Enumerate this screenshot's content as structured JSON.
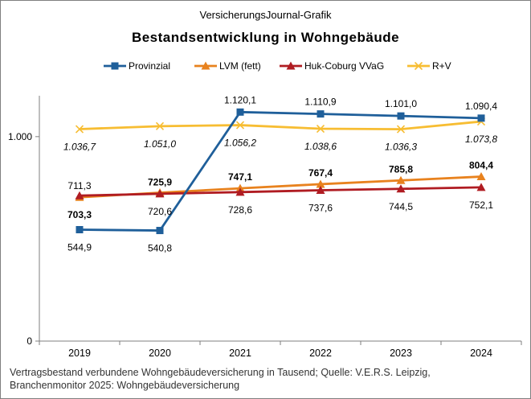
{
  "header": {
    "supertitle": "VersicherungsJournal-Grafik"
  },
  "footer": {
    "source_line1": "Vertragsbestand verbundene  Wohngebäudeversicherung  in Tausend;  Quelle: V.E.R.S. Leipzig,",
    "source_line2": "Branchenmonitor  2025:  Wohngebäudeversicherung"
  },
  "chart_data": {
    "type": "line",
    "title": "Bestandsentwicklung  in Wohngebäude",
    "xlabel": "",
    "ylabel": "",
    "categories": [
      "2019",
      "2020",
      "2021",
      "2022",
      "2023",
      "2024"
    ],
    "ylim": [
      0,
      1200
    ],
    "yticks": [
      0,
      1000
    ],
    "ytick_labels": [
      "0",
      "1.000"
    ],
    "grid": false,
    "legend_position": "top",
    "series": [
      {
        "name": "Provinzial",
        "color": "#1f5f9a",
        "marker": "square",
        "values": [
          544.9,
          540.8,
          1120.1,
          1110.9,
          1101.0,
          1090.4
        ],
        "labels": [
          "544,9",
          "540,8",
          "1.120,1",
          "1.110,9",
          "1.101,0",
          "1.090,4"
        ],
        "label_style": "normal"
      },
      {
        "name": "LVM (fett)",
        "color": "#e8821e",
        "marker": "triangle",
        "values": [
          703.3,
          725.9,
          747.1,
          767.4,
          785.8,
          804.4
        ],
        "labels": [
          "703,3",
          "725,9",
          "747,1",
          "767,4",
          "785,8",
          "804,4"
        ],
        "label_style": "bold"
      },
      {
        "name": "Huk-Coburg VVaG",
        "color": "#b01c22",
        "marker": "triangle",
        "values": [
          711.3,
          720.6,
          728.6,
          737.6,
          744.5,
          752.1
        ],
        "labels": [
          "711,3",
          "720,6",
          "728,6",
          "737,6",
          "744,5",
          "752,1"
        ],
        "label_style": "normal"
      },
      {
        "name": "R+V",
        "color": "#f7bd32",
        "marker": "x",
        "values": [
          1036.7,
          1051.0,
          1056.2,
          1038.6,
          1036.3,
          1073.8
        ],
        "labels": [
          "1.036,7",
          "1.051,0",
          "1.056,2",
          "1.038,6",
          "1.036,3",
          "1.073,8"
        ],
        "label_style": "italic"
      }
    ]
  }
}
